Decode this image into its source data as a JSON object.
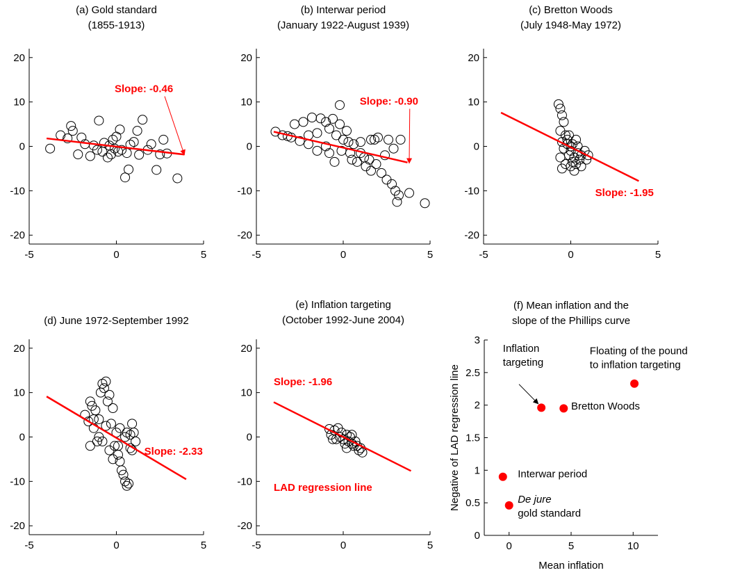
{
  "colors": {
    "regression": "#ff0000",
    "markers": "#000000",
    "axes": "#000000",
    "mean_points": "#ff0000"
  },
  "chart_data": [
    {
      "id": "a",
      "type": "scatter",
      "title": [
        "(a) Gold standard",
        "(1855-1913)"
      ],
      "xlim": [
        -5,
        5
      ],
      "ylim": [
        -22,
        22
      ],
      "xticks": [
        -5,
        0,
        5
      ],
      "yticks": [
        -20,
        -10,
        0,
        10,
        20
      ],
      "marker": "open-circle",
      "points": [
        [
          -3.8,
          -0.5
        ],
        [
          -3.2,
          2.5
        ],
        [
          -2.8,
          1.8
        ],
        [
          -2.6,
          4.6
        ],
        [
          -2.5,
          3.5
        ],
        [
          -2.2,
          -1.8
        ],
        [
          -2.0,
          2.0
        ],
        [
          -1.8,
          0.5
        ],
        [
          -1.5,
          -2.2
        ],
        [
          -1.3,
          0.2
        ],
        [
          -1.1,
          -0.8
        ],
        [
          -1.0,
          5.8
        ],
        [
          -0.8,
          -1.2
        ],
        [
          -0.7,
          0.8
        ],
        [
          -0.5,
          -2.5
        ],
        [
          -0.4,
          0.2
        ],
        [
          -0.3,
          -1.8
        ],
        [
          -0.2,
          1.5
        ],
        [
          -0.1,
          -0.5
        ],
        [
          0.0,
          2.2
        ],
        [
          0.1,
          -1.2
        ],
        [
          0.2,
          3.8
        ],
        [
          0.3,
          -0.8
        ],
        [
          0.5,
          -7.0
        ],
        [
          0.6,
          -1.5
        ],
        [
          0.7,
          -5.2
        ],
        [
          0.8,
          0.4
        ],
        [
          1.0,
          1.0
        ],
        [
          1.2,
          3.5
        ],
        [
          1.3,
          -1.9
        ],
        [
          1.5,
          6.0
        ],
        [
          1.8,
          -0.8
        ],
        [
          2.0,
          0.5
        ],
        [
          2.3,
          -5.3
        ],
        [
          2.5,
          -1.8
        ],
        [
          2.7,
          1.5
        ],
        [
          2.9,
          -1.6
        ],
        [
          3.5,
          -7.2
        ]
      ],
      "fit": {
        "slope": -0.46,
        "intercept": -0.05,
        "x_range": [
          -4,
          3.9
        ]
      },
      "annotation": {
        "text": "Slope: -0.46",
        "x": -0.1,
        "y": 12.2,
        "arrow_to": [
          3.9,
          -1.9
        ]
      }
    },
    {
      "id": "b",
      "type": "scatter",
      "title": [
        "(b) Interwar period",
        "(January 1922-August 1939)"
      ],
      "xlim": [
        -5,
        5
      ],
      "ylim": [
        -22,
        22
      ],
      "xticks": [
        -5,
        0,
        5
      ],
      "yticks": [
        -20,
        -10,
        0,
        10,
        20
      ],
      "marker": "open-circle",
      "points": [
        [
          -3.9,
          3.3
        ],
        [
          -3.5,
          2.5
        ],
        [
          -3.0,
          2.0
        ],
        [
          -2.8,
          5.0
        ],
        [
          -2.5,
          1.2
        ],
        [
          -2.3,
          5.5
        ],
        [
          -2.0,
          0.5
        ],
        [
          -1.8,
          6.5
        ],
        [
          -1.5,
          3.0
        ],
        [
          -1.3,
          6.3
        ],
        [
          -1.0,
          5.5
        ],
        [
          -0.8,
          4.0
        ],
        [
          -0.6,
          6.2
        ],
        [
          -0.4,
          2.5
        ],
        [
          -0.2,
          5.0
        ],
        [
          -0.1,
          -1.0
        ],
        [
          -0.2,
          9.3
        ],
        [
          0.0,
          1.5
        ],
        [
          0.2,
          3.5
        ],
        [
          0.4,
          -1.5
        ],
        [
          0.6,
          0.5
        ],
        [
          0.8,
          -3.5
        ],
        [
          1.0,
          1.0
        ],
        [
          1.2,
          -2.5
        ],
        [
          1.3,
          -4.5
        ],
        [
          1.5,
          -3.0
        ],
        [
          1.6,
          -5.5
        ],
        [
          1.8,
          1.5
        ],
        [
          1.9,
          -4.0
        ],
        [
          2.0,
          2.0
        ],
        [
          2.2,
          -6.0
        ],
        [
          2.4,
          -2.0
        ],
        [
          2.5,
          -7.5
        ],
        [
          2.6,
          1.5
        ],
        [
          2.8,
          -8.5
        ],
        [
          3.0,
          -10.0
        ],
        [
          3.1,
          -12.5
        ],
        [
          3.2,
          -11.0
        ],
        [
          3.3,
          1.5
        ],
        [
          3.8,
          -10.5
        ],
        [
          4.7,
          -12.8
        ],
        [
          -1.0,
          0.0
        ],
        [
          -2.0,
          2.5
        ],
        [
          0.5,
          -3.0
        ],
        [
          -0.5,
          -3.5
        ],
        [
          1.0,
          -1.5
        ],
        [
          -3.2,
          2.3
        ],
        [
          1.6,
          1.5
        ],
        [
          2.9,
          -0.5
        ],
        [
          -1.5,
          -1.0
        ],
        [
          0.3,
          1.0
        ],
        [
          -0.8,
          -1.5
        ]
      ],
      "fit": {
        "slope": -0.9,
        "intercept": -0.3,
        "x_range": [
          -4,
          3.7
        ]
      },
      "annotation": {
        "text": "Slope: -0.90",
        "x": 0.95,
        "y": 9.4,
        "arrow_to": [
          3.8,
          -3.8
        ]
      }
    },
    {
      "id": "c",
      "type": "scatter",
      "title": [
        "(c) Bretton Woods",
        "(July 1948-May 1972)"
      ],
      "xlim": [
        -5,
        5
      ],
      "ylim": [
        -22,
        22
      ],
      "xticks": [
        -5,
        0,
        5
      ],
      "yticks": [
        -20,
        -10,
        0,
        10,
        20
      ],
      "marker": "open-circle",
      "points": [
        [
          -0.7,
          9.5
        ],
        [
          -0.6,
          8.5
        ],
        [
          -0.5,
          7.0
        ],
        [
          -0.4,
          5.5
        ],
        [
          -0.6,
          3.5
        ],
        [
          -0.3,
          2.5
        ],
        [
          -0.5,
          1.0
        ],
        [
          -0.2,
          0.5
        ],
        [
          -0.4,
          -0.5
        ],
        [
          0.0,
          -1.0
        ],
        [
          -0.1,
          -2.0
        ],
        [
          0.2,
          -2.5
        ],
        [
          0.1,
          -3.5
        ],
        [
          0.3,
          -4.0
        ],
        [
          0.0,
          -4.5
        ],
        [
          0.2,
          -5.5
        ],
        [
          0.5,
          -3.0
        ],
        [
          0.6,
          -4.5
        ],
        [
          0.4,
          -1.5
        ],
        [
          0.6,
          -2.0
        ],
        [
          -0.3,
          -4.0
        ],
        [
          -0.6,
          -2.5
        ],
        [
          -0.2,
          1.5
        ],
        [
          0.1,
          0.5
        ],
        [
          0.4,
          0.0
        ],
        [
          0.8,
          -1.0
        ],
        [
          1.0,
          -2.0
        ],
        [
          0.9,
          -3.0
        ],
        [
          -0.5,
          -5.0
        ],
        [
          -0.1,
          2.5
        ],
        [
          0.3,
          1.5
        ],
        [
          0.0,
          0.0
        ]
      ],
      "fit": {
        "slope": -1.95,
        "intercept": -0.2,
        "x_range": [
          -4,
          3.9
        ]
      },
      "annotation": {
        "text": "Slope: -1.95",
        "x": 1.4,
        "y": -11.2,
        "arrow_to": null
      }
    },
    {
      "id": "d",
      "type": "scatter",
      "title": [
        "(d) June 1972-September 1992"
      ],
      "xlim": [
        -5,
        5
      ],
      "ylim": [
        -22,
        22
      ],
      "xticks": [
        -5,
        0,
        5
      ],
      "yticks": [
        -20,
        -10,
        0,
        10,
        20
      ],
      "marker": "open-circle",
      "points": [
        [
          -1.8,
          5.0
        ],
        [
          -1.6,
          3.5
        ],
        [
          -1.5,
          8.0
        ],
        [
          -1.4,
          7.0
        ],
        [
          -1.3,
          2.0
        ],
        [
          -1.2,
          6.0
        ],
        [
          -1.1,
          -1.0
        ],
        [
          -1.0,
          4.0
        ],
        [
          -0.9,
          10.0
        ],
        [
          -0.8,
          12.0
        ],
        [
          -0.7,
          11.0
        ],
        [
          -0.6,
          12.5
        ],
        [
          -0.5,
          8.0
        ],
        [
          -0.4,
          9.5
        ],
        [
          -0.3,
          3.0
        ],
        [
          -0.2,
          6.5
        ],
        [
          -0.1,
          -2.0
        ],
        [
          0.0,
          1.0
        ],
        [
          0.1,
          -4.0
        ],
        [
          0.2,
          -5.5
        ],
        [
          0.3,
          -7.5
        ],
        [
          0.4,
          -8.5
        ],
        [
          0.5,
          -10.0
        ],
        [
          0.6,
          -11.0
        ],
        [
          0.7,
          -10.5
        ],
        [
          0.8,
          -2.5
        ],
        [
          0.9,
          3.0
        ],
        [
          1.0,
          1.0
        ],
        [
          1.1,
          -1.0
        ],
        [
          0.9,
          -3.0
        ],
        [
          -0.8,
          -1.0
        ],
        [
          -1.5,
          -2.0
        ],
        [
          -0.4,
          -3.0
        ],
        [
          0.2,
          2.0
        ],
        [
          -1.0,
          0.0
        ],
        [
          0.6,
          1.0
        ],
        [
          0.5,
          0.0
        ],
        [
          -0.6,
          2.5
        ],
        [
          0.8,
          0.5
        ],
        [
          -1.3,
          4.0
        ],
        [
          -0.2,
          -5.0
        ],
        [
          0.1,
          -2.0
        ]
      ],
      "fit": {
        "slope": -2.33,
        "intercept": -0.2,
        "x_range": [
          -4,
          4
        ]
      },
      "annotation": {
        "text": "Slope: -2.33",
        "x": 1.6,
        "y": -4.0,
        "arrow_to": null
      }
    },
    {
      "id": "e",
      "type": "scatter",
      "title": [
        "(e) Inflation targeting",
        "(October 1992-June 2004)"
      ],
      "xlim": [
        -5,
        5
      ],
      "ylim": [
        -22,
        22
      ],
      "xticks": [
        -5,
        0,
        5
      ],
      "yticks": [
        -20,
        -10,
        0,
        10,
        20
      ],
      "marker": "open-circle",
      "points": [
        [
          -0.8,
          1.8
        ],
        [
          -0.7,
          0.5
        ],
        [
          -0.5,
          1.5
        ],
        [
          -0.4,
          -0.5
        ],
        [
          -0.3,
          2.0
        ],
        [
          -0.2,
          0.0
        ],
        [
          -0.1,
          1.0
        ],
        [
          0.0,
          -0.5
        ],
        [
          0.1,
          -1.5
        ],
        [
          0.2,
          0.5
        ],
        [
          0.3,
          -1.0
        ],
        [
          0.4,
          0.0
        ],
        [
          0.5,
          -1.5
        ],
        [
          0.6,
          -2.0
        ],
        [
          0.7,
          -1.0
        ],
        [
          0.8,
          -2.0
        ],
        [
          0.9,
          -3.0
        ],
        [
          1.0,
          -2.5
        ],
        [
          1.1,
          -3.5
        ],
        [
          0.5,
          0.5
        ],
        [
          -0.6,
          -0.5
        ],
        [
          0.2,
          -2.5
        ]
      ],
      "fit": {
        "slope": -1.96,
        "intercept": 0.0,
        "x_range": [
          -4,
          3.9
        ]
      },
      "annotation": {
        "text": "Slope: -1.96",
        "x": -4.0,
        "y": 11.7,
        "arrow_to": null
      },
      "label": {
        "text": "LAD regression line",
        "x": -4.0,
        "y": -12.1
      }
    },
    {
      "id": "f",
      "type": "scatter",
      "title": [
        "(f) Mean inflation and the",
        "slope of the Phillips curve"
      ],
      "xlim": [
        -2,
        12
      ],
      "ylim": [
        0,
        3
      ],
      "xticks": [
        0,
        5,
        10
      ],
      "yticks": [
        0,
        0.5,
        1,
        1.5,
        2,
        2.5,
        3
      ],
      "xlabel": "Mean inflation",
      "ylabel": "Negative of LAD regression line",
      "marker": "filled-circle",
      "points": [
        {
          "x": 2.6,
          "y": 1.96
        },
        {
          "x": 4.4,
          "y": 1.95
        },
        {
          "x": 10.1,
          "y": 2.33
        },
        {
          "x": -0.5,
          "y": 0.9
        },
        {
          "x": 0.0,
          "y": 0.46
        }
      ],
      "labels": [
        {
          "lines": [
            "Inflation",
            "targeting"
          ],
          "x": -0.5,
          "y": 2.82
        },
        {
          "lines": [
            "Bretton Woods"
          ],
          "x": 5.0,
          "y": 1.93
        },
        {
          "lines": [
            "Floating of the pound",
            "to inflation targeting"
          ],
          "x": 6.5,
          "y": 2.78
        },
        {
          "lines": [
            "Interwar period"
          ],
          "x": 0.7,
          "y": 0.89
        },
        {
          "lines": [
            "De jure",
            "gold standard"
          ],
          "x": 0.7,
          "y": 0.5,
          "italic_first_word_line": true
        }
      ],
      "arrow": {
        "from": [
          0.8,
          2.32
        ],
        "to": [
          2.35,
          2.02
        ]
      }
    }
  ]
}
